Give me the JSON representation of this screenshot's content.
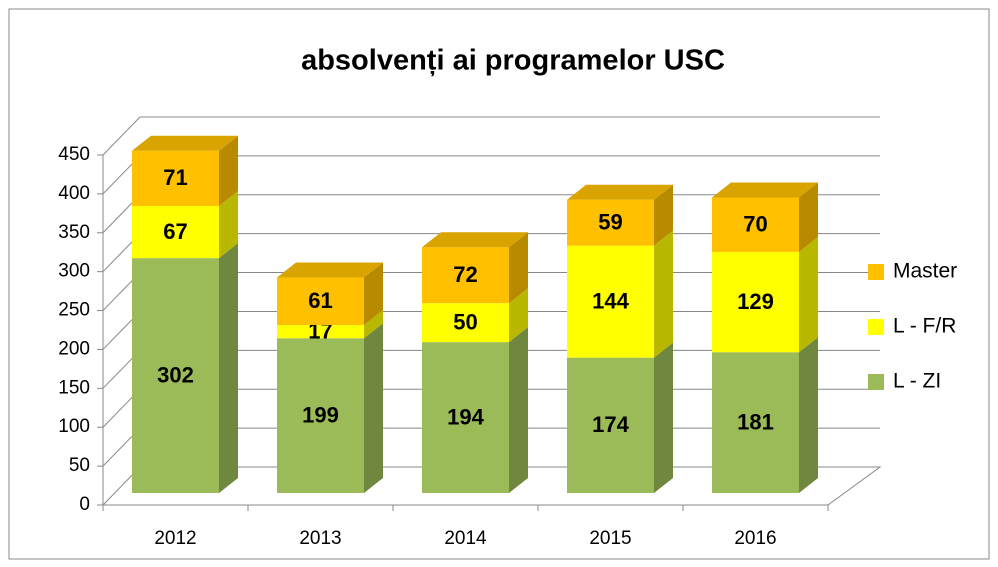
{
  "chart_data": {
    "type": "bar",
    "stacked": true,
    "title": "absolvenți ai programelor USC",
    "categories": [
      "2012",
      "2013",
      "2014",
      "2015",
      "2016"
    ],
    "series": [
      {
        "name": "L - ZI",
        "color": "#9bbb59",
        "values": [
          302,
          199,
          194,
          174,
          181
        ]
      },
      {
        "name": "L - F/R",
        "color": "#ffff00",
        "values": [
          67,
          17,
          50,
          144,
          129
        ]
      },
      {
        "name": "Master",
        "color": "#ffc000",
        "values": [
          71,
          61,
          72,
          59,
          70
        ]
      }
    ],
    "ylim": [
      0,
      450
    ],
    "yticks": [
      0,
      50,
      100,
      150,
      200,
      250,
      300,
      350,
      400,
      450
    ],
    "grid": true,
    "legend": "right"
  }
}
